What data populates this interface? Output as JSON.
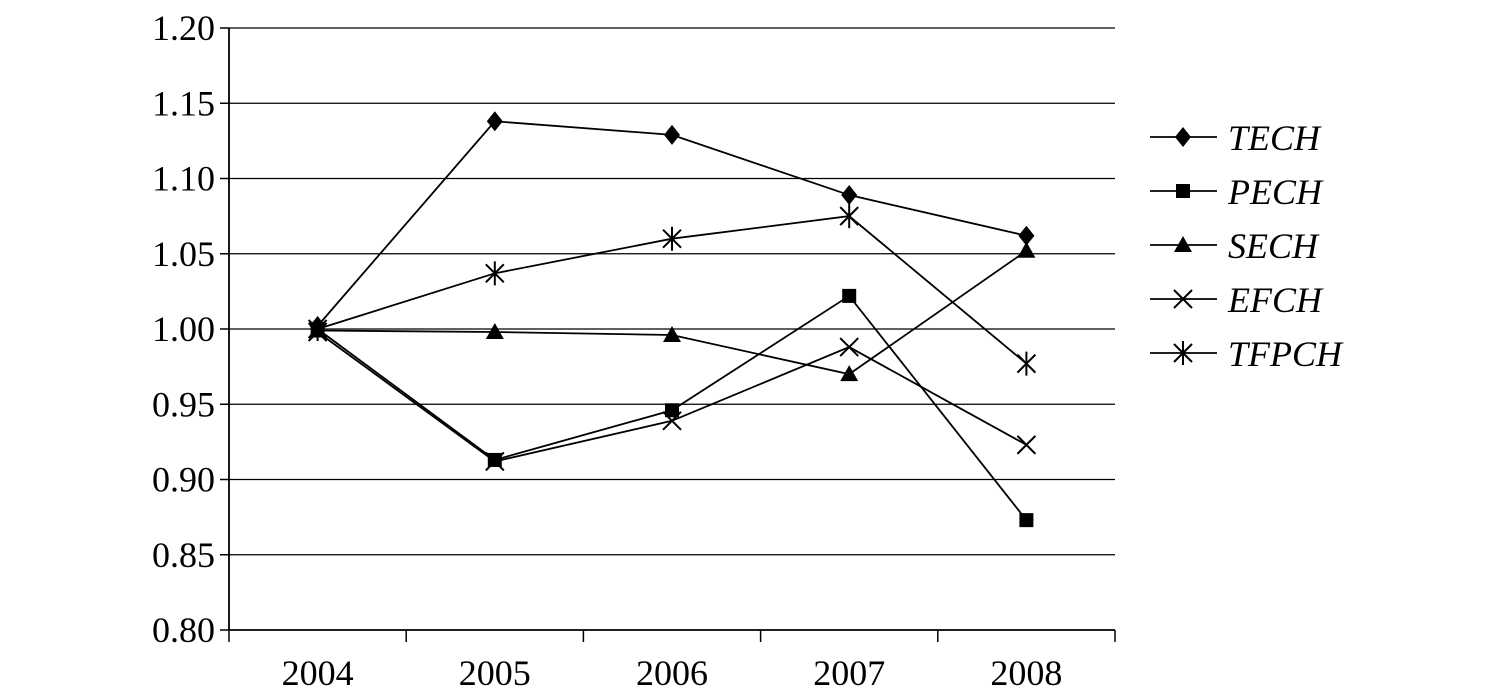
{
  "chart_data": {
    "type": "line",
    "categories": [
      "2004",
      "2005",
      "2006",
      "2007",
      "2008"
    ],
    "ylim": [
      0.8,
      1.2
    ],
    "yticks": [
      "0.80",
      "0.85",
      "0.90",
      "0.95",
      "1.00",
      "1.05",
      "1.10",
      "1.15",
      "1.20"
    ],
    "grid": true,
    "legend_position": "right",
    "series": [
      {
        "name": "TECH",
        "marker": "diamond",
        "values": [
          1.002,
          1.138,
          1.129,
          1.089,
          1.062
        ]
      },
      {
        "name": "PECH",
        "marker": "square",
        "values": [
          1.0,
          0.913,
          0.946,
          1.022,
          0.873
        ]
      },
      {
        "name": "SECH",
        "marker": "triangle",
        "values": [
          0.999,
          0.998,
          0.996,
          0.97,
          1.052
        ]
      },
      {
        "name": "EFCH",
        "marker": "x",
        "values": [
          0.998,
          0.912,
          0.939,
          0.988,
          0.923
        ]
      },
      {
        "name": "TFPCH",
        "marker": "asterisk",
        "values": [
          1.0,
          1.037,
          1.06,
          1.075,
          0.977
        ]
      }
    ],
    "color": "#000000"
  }
}
